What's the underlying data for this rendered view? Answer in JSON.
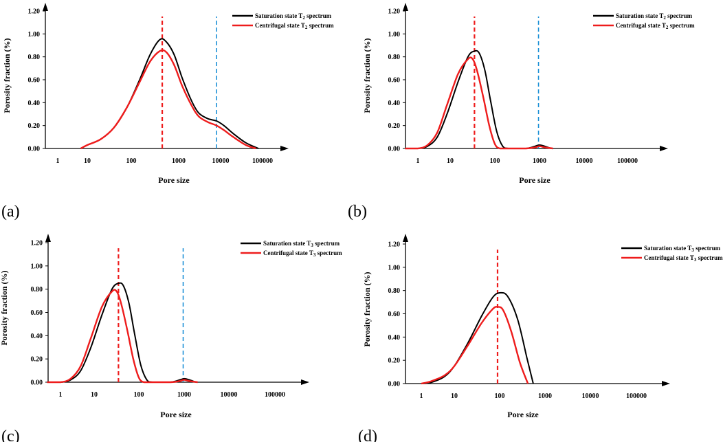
{
  "figure": {
    "colors": {
      "saturation": "#000000",
      "centrifugal": "#ee1c1c",
      "marker_red": "#ee1c1c",
      "marker_blue": "#1a8fd6"
    }
  },
  "chart_data": [
    {
      "panel": "(a)",
      "type": "line",
      "xscale": "log",
      "xlabel": "Pore size",
      "ylabel": "Porosity fraction (%)",
      "xticks": [
        "1",
        "10",
        "100",
        "1000",
        "10000",
        "100000"
      ],
      "yticks": [
        "0.00",
        "0.20",
        "0.40",
        "0.60",
        "0.80",
        "1.00",
        "1.20"
      ],
      "ylim": [
        0,
        1.2
      ],
      "legend": [
        "Saturation state T₂ spectrum",
        "Centrifugal state T₂ spectrum"
      ],
      "series": [
        {
          "name": "Saturation state T₂ spectrum",
          "color": "#000000",
          "x": [
            6,
            10,
            20,
            40,
            80,
            150,
            250,
            400,
            550,
            800,
            1200,
            2000,
            3000,
            5000,
            8000,
            12000,
            20000,
            40000,
            80000
          ],
          "y": [
            0.0,
            0.03,
            0.08,
            0.18,
            0.36,
            0.6,
            0.82,
            0.95,
            0.93,
            0.82,
            0.62,
            0.42,
            0.31,
            0.26,
            0.24,
            0.2,
            0.13,
            0.05,
            0.0
          ]
        },
        {
          "name": "Centrifugal state T₂ spectrum",
          "color": "#ee1c1c",
          "x": [
            6,
            10,
            20,
            40,
            80,
            150,
            250,
            400,
            550,
            800,
            1200,
            2000,
            3000,
            5000,
            8000,
            12000,
            20000,
            40000,
            70000
          ],
          "y": [
            0.0,
            0.03,
            0.08,
            0.18,
            0.36,
            0.58,
            0.76,
            0.85,
            0.84,
            0.73,
            0.55,
            0.38,
            0.28,
            0.23,
            0.2,
            0.16,
            0.1,
            0.03,
            0.0
          ]
        }
      ],
      "markers": [
        {
          "x": 450,
          "color": "#ee1c1c"
        },
        {
          "x": 8000,
          "color": "#1a8fd6"
        }
      ]
    },
    {
      "panel": "(b)",
      "type": "line",
      "xscale": "log",
      "xlabel": "Pore size",
      "ylabel": "Porosity fraction (%)",
      "xticks": [
        "1",
        "10",
        "100",
        "1000",
        "10000",
        "100000"
      ],
      "yticks": [
        "0.00",
        "0.20",
        "0.40",
        "0.60",
        "0.80",
        "1.00",
        "1.20"
      ],
      "ylim": [
        0,
        1.2
      ],
      "legend": [
        "Saturation state T₂ spectrum",
        "Centrifugal state T₂ spectrum"
      ],
      "series": [
        {
          "name": "Saturation state T₂ spectrum",
          "color": "#000000",
          "x": [
            0.4,
            1,
            2,
            4,
            8,
            15,
            25,
            35,
            45,
            60,
            80,
            110,
            150,
            200,
            500,
            800,
            1000,
            1300,
            1800
          ],
          "y": [
            0.0,
            0.0,
            0.02,
            0.1,
            0.3,
            0.58,
            0.8,
            0.85,
            0.83,
            0.68,
            0.42,
            0.15,
            0.02,
            0.0,
            0.0,
            0.02,
            0.03,
            0.02,
            0.0
          ]
        },
        {
          "name": "Centrifugal state T₂ spectrum",
          "color": "#ee1c1c",
          "x": [
            0.4,
            1,
            2,
            4,
            8,
            15,
            25,
            32,
            40,
            55,
            75,
            100,
            130,
            200,
            500,
            800,
            1000,
            1300,
            2000
          ],
          "y": [
            0.0,
            0.0,
            0.03,
            0.14,
            0.38,
            0.65,
            0.78,
            0.78,
            0.68,
            0.45,
            0.2,
            0.04,
            0.0,
            0.0,
            0.0,
            0.01,
            0.02,
            0.01,
            0.0
          ]
        }
      ],
      "markers": [
        {
          "x": 35,
          "color": "#ee1c1c"
        },
        {
          "x": 950,
          "color": "#1a8fd6"
        }
      ]
    },
    {
      "panel": "(c)",
      "type": "line",
      "xscale": "log",
      "xlabel": "Pore size",
      "ylabel": "Porosity fraction (%)",
      "xticks": [
        "1",
        "10",
        "100",
        "1000",
        "10000",
        "100000"
      ],
      "yticks": [
        "0.00",
        "0.20",
        "0.40",
        "0.60",
        "0.80",
        "1.00",
        "1.20"
      ],
      "ylim": [
        0,
        1.2
      ],
      "legend": [
        "Saturation state T₃ spectrum",
        "Centrifugal state T₃ spectrum"
      ],
      "series": [
        {
          "name": "Saturation state T₃ spectrum",
          "color": "#000000",
          "x": [
            0.4,
            1,
            2,
            4,
            8,
            15,
            25,
            35,
            45,
            60,
            80,
            110,
            150,
            200,
            500,
            800,
            1000,
            1300,
            1800
          ],
          "y": [
            0.0,
            0.0,
            0.02,
            0.1,
            0.3,
            0.58,
            0.8,
            0.85,
            0.83,
            0.68,
            0.42,
            0.15,
            0.02,
            0.0,
            0.0,
            0.02,
            0.03,
            0.02,
            0.0
          ]
        },
        {
          "name": "Centrifugal state T₃ spectrum",
          "color": "#ee1c1c",
          "x": [
            0.4,
            1,
            2,
            4,
            8,
            15,
            25,
            32,
            40,
            55,
            75,
            100,
            130,
            200,
            500,
            800,
            1000,
            1300,
            2000
          ],
          "y": [
            0.0,
            0.0,
            0.03,
            0.14,
            0.38,
            0.65,
            0.78,
            0.78,
            0.68,
            0.45,
            0.2,
            0.04,
            0.0,
            0.0,
            0.0,
            0.01,
            0.02,
            0.01,
            0.0
          ]
        }
      ],
      "markers": [
        {
          "x": 35,
          "color": "#ee1c1c"
        },
        {
          "x": 950,
          "color": "#1a8fd6"
        }
      ]
    },
    {
      "panel": "(d)",
      "type": "line",
      "xscale": "log",
      "xlabel": "Pore size",
      "ylabel": "Porosity fraction (%)",
      "xticks": [
        "1",
        "10",
        "100",
        "1000",
        "10000",
        "100000"
      ],
      "yticks": [
        "0.00",
        "0.20",
        "0.40",
        "0.60",
        "0.80",
        "1.00",
        "1.20"
      ],
      "ylim": [
        0,
        1.2
      ],
      "legend": [
        "Saturation state T₃ spectrum",
        "Centrifugal state T₃ spectrum"
      ],
      "series": [
        {
          "name": "Saturation state T₃ spectrum",
          "color": "#000000",
          "x": [
            1,
            2,
            5,
            10,
            20,
            40,
            70,
            100,
            150,
            250,
            400,
            550
          ],
          "y": [
            0.0,
            0.01,
            0.06,
            0.15,
            0.35,
            0.58,
            0.74,
            0.78,
            0.75,
            0.55,
            0.22,
            0.0
          ]
        },
        {
          "name": "Centrifugal state T₃ spectrum",
          "color": "#ee1c1c",
          "x": [
            1,
            2,
            5,
            10,
            20,
            40,
            70,
            90,
            120,
            180,
            280,
            420
          ],
          "y": [
            0.0,
            0.02,
            0.07,
            0.15,
            0.33,
            0.52,
            0.64,
            0.66,
            0.63,
            0.45,
            0.18,
            0.0
          ]
        }
      ],
      "markers": [
        {
          "x": 90,
          "color": "#ee1c1c"
        }
      ]
    }
  ]
}
